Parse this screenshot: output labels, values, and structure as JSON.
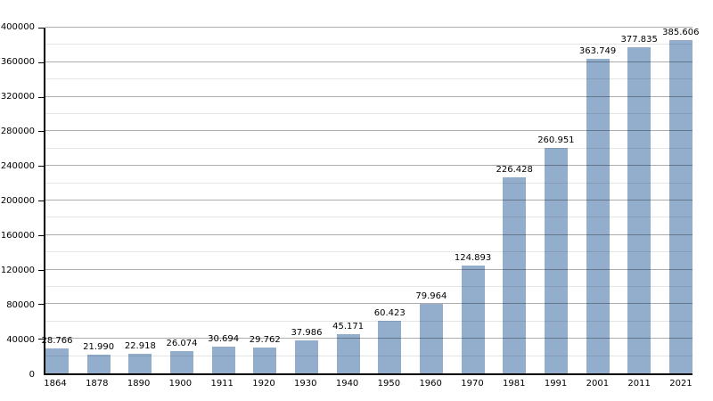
{
  "chart_data": {
    "type": "bar",
    "title": "",
    "xlabel": "",
    "ylabel": "",
    "categories": [
      "1864",
      "1878",
      "1890",
      "1900",
      "1911",
      "1920",
      "1930",
      "1940",
      "1950",
      "1960",
      "1970",
      "1981",
      "1991",
      "2001",
      "2011",
      "2021"
    ],
    "values": [
      28766,
      21990,
      22918,
      26074,
      30694,
      29762,
      37986,
      45171,
      60423,
      79964,
      124893,
      226428,
      260951,
      363749,
      377835,
      385606
    ],
    "value_labels": [
      "28.766",
      "21.990",
      "22.918",
      "26.074",
      "30.694",
      "29.762",
      "37.986",
      "45.171",
      "60.423",
      "79.964",
      "124.893",
      "226.428",
      "260.951",
      "363.749",
      "377.835",
      "385.606"
    ],
    "ylim": [
      0,
      400000
    ],
    "y_major_step": 40000,
    "y_minor_step": 20000,
    "y_tick_labels": [
      "0",
      "40000",
      "80000",
      "120000",
      "160000",
      "200000",
      "240000",
      "280000",
      "320000",
      "360000",
      "400000"
    ],
    "grid": true,
    "legend": false,
    "bar_color": "#93aecd",
    "axis_color": "#000000",
    "label_color": "#000000"
  }
}
